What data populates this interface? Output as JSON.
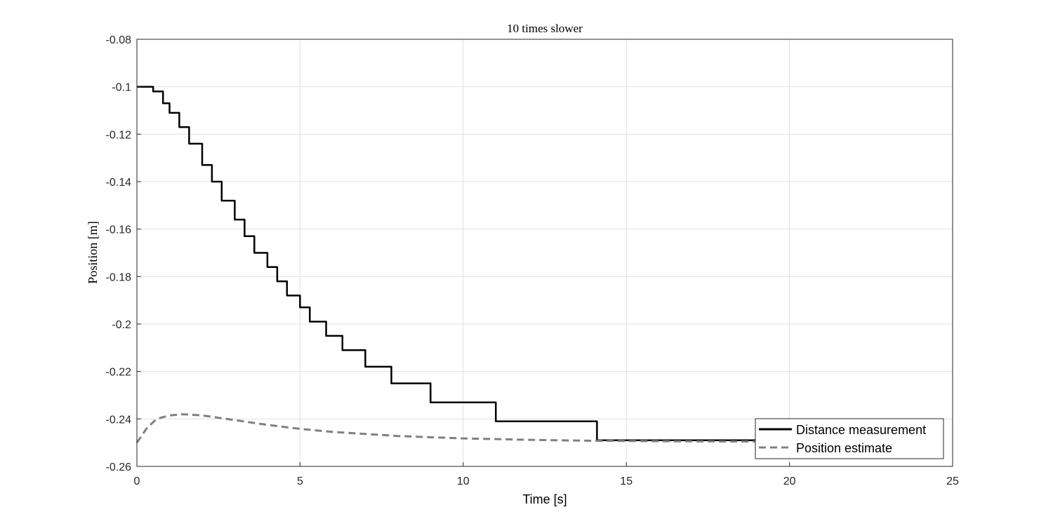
{
  "chart_data": {
    "type": "line",
    "title": "10 times slower",
    "xlabel": "Time [s]",
    "ylabel": "Position [m]",
    "xlim": [
      0,
      25
    ],
    "ylim": [
      -0.26,
      -0.08
    ],
    "x_ticks": [
      0,
      5,
      10,
      15,
      20,
      25
    ],
    "y_ticks": [
      -0.08,
      -0.1,
      -0.12,
      -0.14,
      -0.16,
      -0.18,
      -0.2,
      -0.22,
      -0.24,
      -0.26
    ],
    "x_tick_labels": [
      "0",
      "5",
      "10",
      "15",
      "20",
      "25"
    ],
    "y_tick_labels": [
      "-0.08",
      "-0.1",
      "-0.12",
      "-0.14",
      "-0.16",
      "-0.18",
      "-0.2",
      "-0.22",
      "-0.24",
      "-0.26"
    ],
    "grid": true,
    "legend_position": "bottom-right",
    "series": [
      {
        "name": "Distance measurement",
        "style": "solid",
        "color": "#000000",
        "x": [
          0,
          0.3,
          0.5,
          0.8,
          1.0,
          1.3,
          1.6,
          2.0,
          2.3,
          2.6,
          3.0,
          3.3,
          3.6,
          4.0,
          4.3,
          4.6,
          5.0,
          5.3,
          5.8,
          6.3,
          7.0,
          7.8,
          9.0,
          10.0,
          10.8,
          11.0,
          12.0,
          13.0,
          14.0,
          14.1,
          15.0,
          16.0,
          17.0,
          18.0,
          19.0
        ],
        "y": [
          -0.1,
          -0.1,
          -0.102,
          -0.107,
          -0.111,
          -0.117,
          -0.124,
          -0.133,
          -0.14,
          -0.148,
          -0.156,
          -0.163,
          -0.17,
          -0.176,
          -0.182,
          -0.188,
          -0.193,
          -0.199,
          -0.205,
          -0.211,
          -0.218,
          -0.225,
          -0.233,
          -0.233,
          -0.233,
          -0.241,
          -0.241,
          -0.241,
          -0.241,
          -0.249,
          -0.249,
          -0.249,
          -0.249,
          -0.249,
          -0.249
        ]
      },
      {
        "name": "Position estimate",
        "style": "dashed",
        "color": "#808080",
        "x": [
          0,
          0.3,
          0.6,
          1.0,
          1.4,
          2.0,
          3.0,
          4.0,
          5.0,
          6.0,
          8.0,
          10.0,
          12.0,
          14.0,
          16.0,
          18.0,
          19.0
        ],
        "y": [
          -0.25,
          -0.244,
          -0.24,
          -0.2385,
          -0.238,
          -0.2385,
          -0.2405,
          -0.2425,
          -0.2442,
          -0.2455,
          -0.2472,
          -0.2482,
          -0.2488,
          -0.2492,
          -0.2494,
          -0.2495,
          -0.2495
        ]
      }
    ]
  }
}
